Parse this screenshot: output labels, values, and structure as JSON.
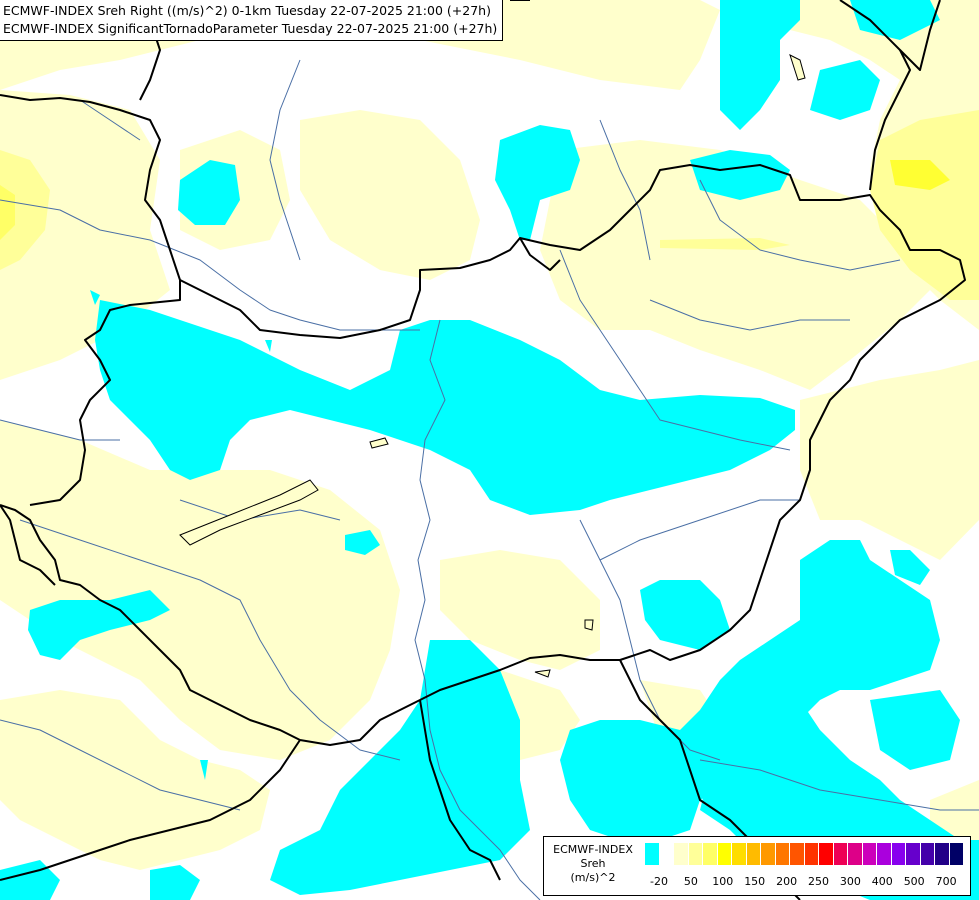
{
  "header": {
    "line1": "ECMWF-INDEX Sreh Right ((m/s)^2) 0-1km Tuesday 22-07-2025 21:00 (+27h)",
    "line2": "ECMWF-INDEX SignificantTornadoParameter Tuesday 22-07-2025 21:00 (+27h)"
  },
  "legend": {
    "title_line1": "ECMWF-INDEX",
    "title_line2": "Sreh",
    "title_line3": "(m/s)^2",
    "colors": [
      "#00ffff",
      "#ffffff",
      "#ffffcc",
      "#ffff99",
      "#ffff66",
      "#ffff00",
      "#ffdd00",
      "#ffbb00",
      "#ff9900",
      "#ff7700",
      "#ff5500",
      "#ff3300",
      "#ff0000",
      "#ee0055",
      "#dd0088",
      "#cc00bb",
      "#aa00dd",
      "#8800ee",
      "#6600cc",
      "#4400aa",
      "#220088",
      "#000066"
    ],
    "labels": [
      "-20",
      "50",
      "100",
      "150",
      "200",
      "250",
      "300",
      "400",
      "500",
      "700"
    ]
  },
  "colors": {
    "cyan": "#00ffff",
    "pale_yellow": "#ffffcc",
    "light_yellow": "#ffff99",
    "yellow": "#ffff00",
    "border": "#000000",
    "river": "#4a6fa5"
  }
}
